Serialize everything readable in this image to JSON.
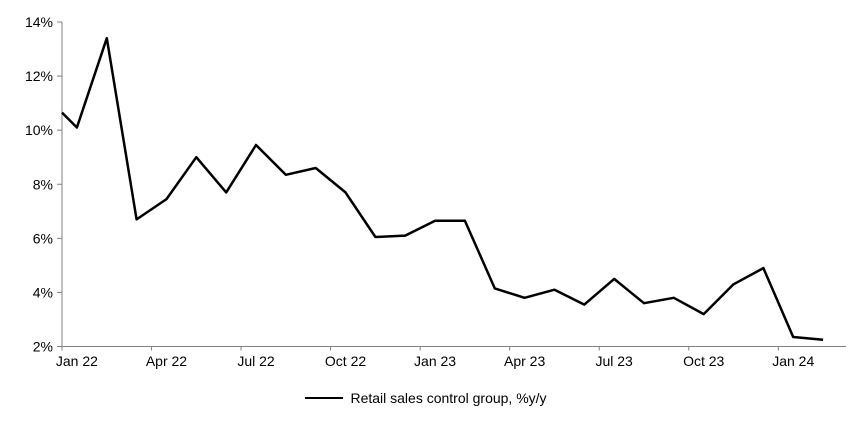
{
  "chart_data": {
    "type": "line",
    "title": "",
    "xlabel": "",
    "ylabel": "",
    "categories": [
      "Jan 22",
      "Feb 22",
      "Mar 22",
      "Apr 22",
      "May 22",
      "Jun 22",
      "Jul 22",
      "Aug 22",
      "Sep 22",
      "Oct 22",
      "Nov 22",
      "Dec 22",
      "Jan 23",
      "Feb 23",
      "Mar 23",
      "Apr 23",
      "May 23",
      "Jun 23",
      "Jul 23",
      "Aug 23",
      "Sep 23",
      "Oct 23",
      "Nov 23",
      "Dec 23",
      "Jan 24",
      "Feb 24"
    ],
    "series": [
      {
        "name": "Retail sales control group, %y/y",
        "color": "#000000",
        "values": [
          10.1,
          13.4,
          6.7,
          7.45,
          9.0,
          7.7,
          9.45,
          8.35,
          8.6,
          7.7,
          6.05,
          6.1,
          6.65,
          6.65,
          4.15,
          3.8,
          4.1,
          3.55,
          4.5,
          3.6,
          3.8,
          3.2,
          4.3,
          4.9,
          2.35,
          2.25
        ]
      }
    ],
    "edge_entry_value": 10.65,
    "ylim": [
      2,
      14
    ],
    "y_tick_step": 2,
    "y_tick_labels": [
      "2%",
      "4%",
      "6%",
      "8%",
      "10%",
      "12%",
      "14%"
    ],
    "x_tick_labels": [
      "Jan 22",
      "Apr 22",
      "Jul 22",
      "Oct 22",
      "Jan 23",
      "Apr 23",
      "Jul 23",
      "Oct 23",
      "Jan 24"
    ],
    "x_label_every": 3,
    "grid": false,
    "legend_position": "bottom",
    "axis_color": "#808080",
    "text_color": "#000000",
    "background": "#ffffff",
    "line_width": 2.5
  }
}
